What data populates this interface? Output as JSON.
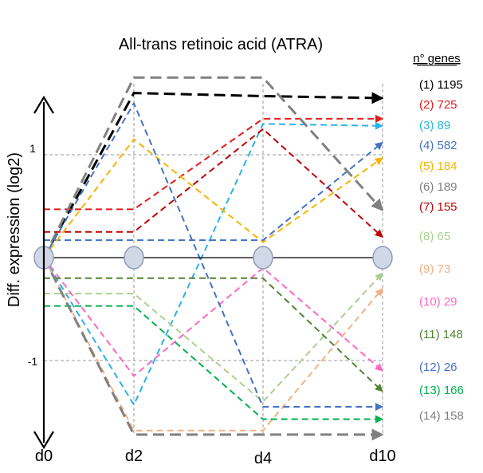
{
  "chart_data": {
    "type": "line",
    "title": "All-trans retinoic acid (ATRA)",
    "ylabel": "Diff. expression (log2)",
    "x": [
      "d0",
      "d2",
      "d4",
      "d10"
    ],
    "y_ticks": [
      "1",
      "-1"
    ],
    "ylim": [
      -1.6,
      1.7
    ],
    "legend_title": "n° genes",
    "series": [
      {
        "label": "(1) 1195",
        "color": "#000000",
        "values": [
          0,
          1.6,
          1.57,
          1.55
        ]
      },
      {
        "label": "(2) 725",
        "color": "#e41a1c",
        "values": [
          0.47,
          0.47,
          1.35,
          1.35
        ]
      },
      {
        "label": "(3) 89",
        "color": "#29b3e8",
        "values": [
          0,
          -1.43,
          1.3,
          1.28
        ]
      },
      {
        "label": "(4) 582",
        "color": "#4472c4",
        "values": [
          0.17,
          0.17,
          0.17,
          1.12
        ]
      },
      {
        "label": "(5) 184",
        "color": "#f5b400",
        "values": [
          0,
          1.15,
          0.15,
          0.97
        ]
      },
      {
        "label": "(6) 189",
        "color": "#808080",
        "values": [
          0,
          1.75,
          1.75,
          0.46
        ]
      },
      {
        "label": "(7) 155",
        "color": "#c00000",
        "values": [
          0.25,
          0.25,
          1.25,
          0.2
        ]
      },
      {
        "label": "(8) 65",
        "color": "#a9d18e",
        "values": [
          -0.35,
          -0.35,
          -1.4,
          -0.15
        ]
      },
      {
        "label": "(9) 73",
        "color": "#f4b183",
        "values": [
          0,
          -1.68,
          -1.68,
          -0.3
        ]
      },
      {
        "label": "(10) 29",
        "color": "#ff66c4",
        "values": [
          0,
          -1.15,
          -0.1,
          -1.1
        ]
      },
      {
        "label": "(11) 148",
        "color": "#548235",
        "values": [
          -0.2,
          -0.2,
          -0.2,
          -1.3
        ]
      },
      {
        "label": "(12) 26",
        "color": "#4472c4",
        "values": [
          0,
          1.5,
          -1.45,
          -1.45
        ]
      },
      {
        "label": "(13) 166",
        "color": "#00b050",
        "values": [
          -0.47,
          -0.47,
          -1.57,
          -1.57
        ]
      },
      {
        "label": "(14) 158",
        "color": "#808080",
        "values": [
          0,
          -1.72,
          -1.72,
          -1.72
        ]
      }
    ]
  }
}
